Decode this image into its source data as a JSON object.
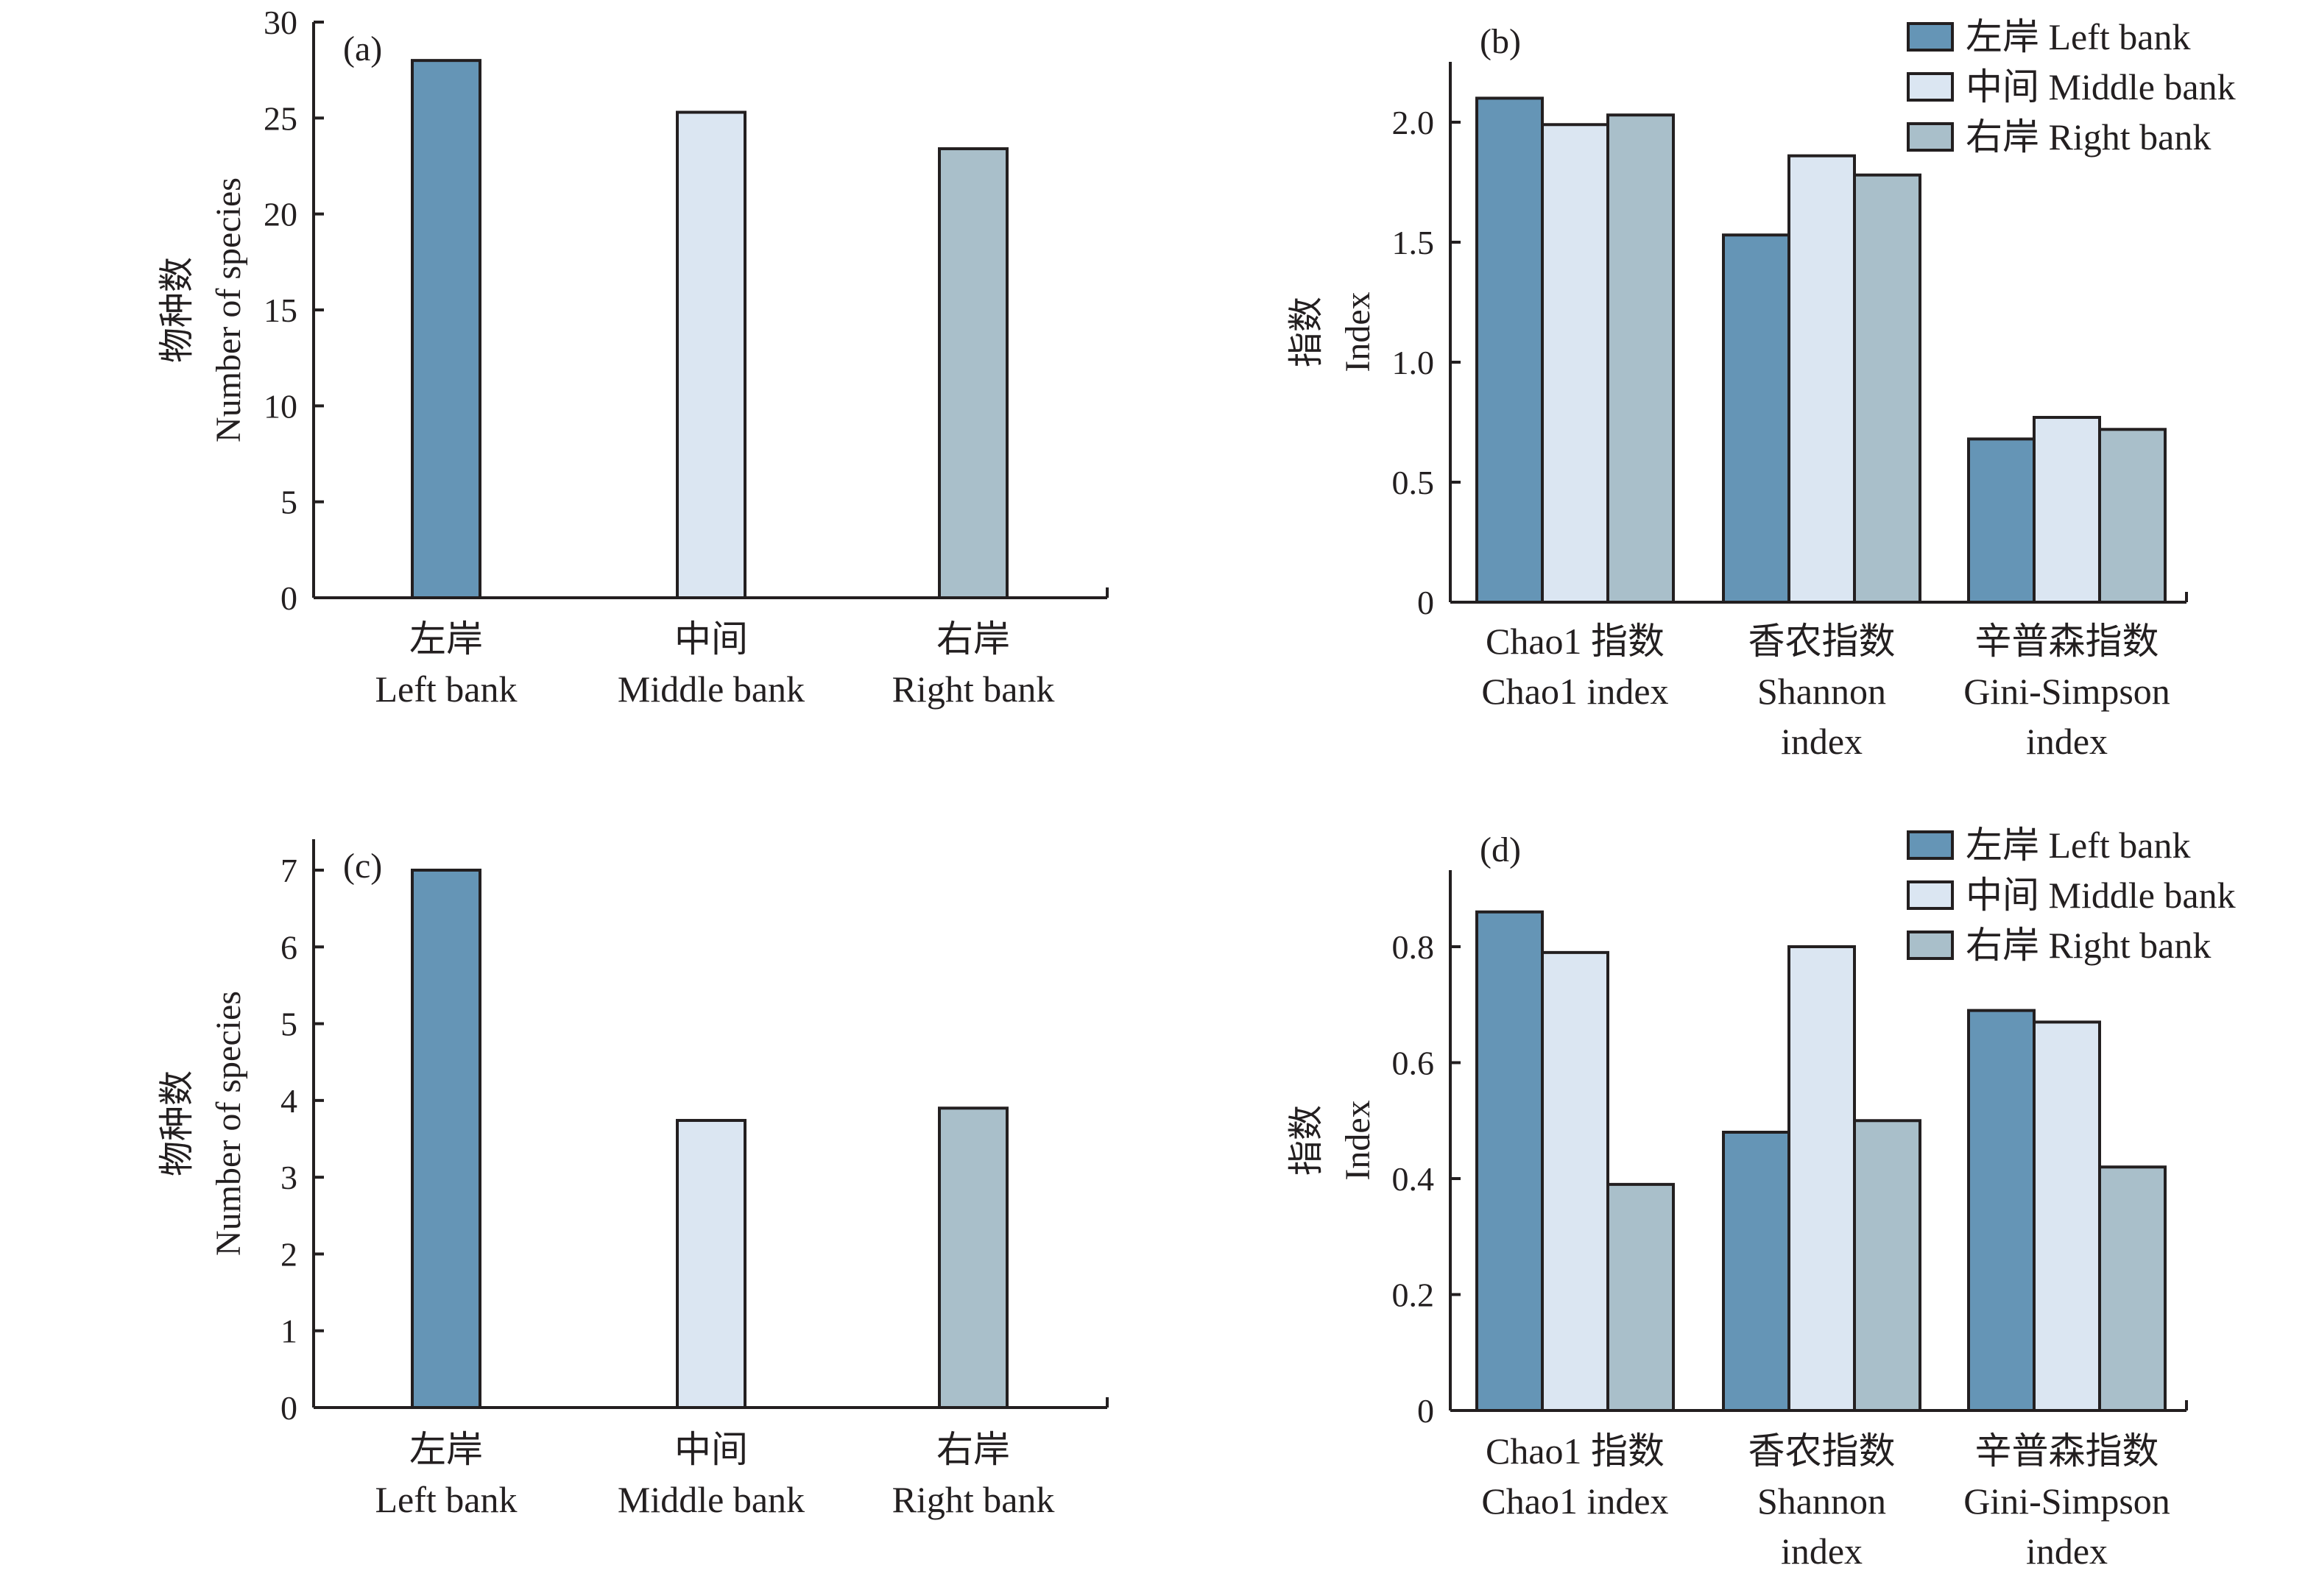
{
  "colors": {
    "left": "#6595b6",
    "middle": "#dbe6f2",
    "right": "#a9bfca",
    "axis": "#231f20"
  },
  "chart_data": [
    {
      "id": "a",
      "type": "bar",
      "panel_label": "(a)",
      "title": "",
      "ylabel_zh": "物种数",
      "ylabel_en": "Number of species",
      "ylim": [
        0,
        30
      ],
      "yticks": [
        0,
        5,
        10,
        15,
        20,
        25,
        30
      ],
      "ytick_labels": [
        "0",
        "5",
        "10",
        "15",
        "20",
        "25",
        "30"
      ],
      "categories": [
        {
          "zh": "左岸",
          "en": [
            "Left bank"
          ]
        },
        {
          "zh": "中间",
          "en": [
            "Middle bank"
          ]
        },
        {
          "zh": "右岸",
          "en": [
            "Right bank"
          ]
        }
      ],
      "values": [
        28.0,
        25.3,
        23.4
      ],
      "bar_color_keys": [
        "left",
        "middle",
        "right"
      ],
      "legend": null
    },
    {
      "id": "b",
      "type": "bar",
      "panel_label": "(b)",
      "title": "",
      "ylabel_zh": "指数",
      "ylabel_en": "Index",
      "ylim": [
        0,
        2.25
      ],
      "yticks": [
        0,
        0.5,
        1.0,
        1.5,
        2.0
      ],
      "ytick_labels": [
        "0",
        "0.5",
        "1.0",
        "1.5",
        "2.0"
      ],
      "categories": [
        {
          "zh": "Chao1 指数",
          "en": [
            "Chao1 index"
          ]
        },
        {
          "zh": "香农指数",
          "en": [
            "Shannon",
            "index"
          ]
        },
        {
          "zh": "辛普森指数",
          "en": [
            "Gini-Simpson",
            "index"
          ]
        }
      ],
      "series": [
        {
          "name": "左岸 Left bank",
          "color_key": "left",
          "values": [
            2.1,
            1.53,
            0.68
          ]
        },
        {
          "name": "中间 Middle bank",
          "color_key": "middle",
          "values": [
            1.99,
            1.86,
            0.77
          ]
        },
        {
          "name": "右岸 Right bank",
          "color_key": "right",
          "values": [
            2.03,
            1.78,
            0.72
          ]
        }
      ],
      "legend": "top-right"
    },
    {
      "id": "c",
      "type": "bar",
      "panel_label": "(c)",
      "title": "",
      "ylabel_zh": "物种数",
      "ylabel_en": "Number of species",
      "ylim": [
        0,
        7.4
      ],
      "yticks": [
        0,
        1,
        2,
        3,
        4,
        5,
        6,
        7
      ],
      "ytick_labels": [
        "0",
        "1",
        "2",
        "3",
        "4",
        "5",
        "6",
        "7"
      ],
      "categories": [
        {
          "zh": "左岸",
          "en": [
            "Left bank"
          ]
        },
        {
          "zh": "中间",
          "en": [
            "Middle bank"
          ]
        },
        {
          "zh": "右岸",
          "en": [
            "Right bank"
          ]
        }
      ],
      "values": [
        7.0,
        3.74,
        3.9
      ],
      "bar_color_keys": [
        "left",
        "middle",
        "right"
      ],
      "legend": null
    },
    {
      "id": "d",
      "type": "bar",
      "panel_label": "(d)",
      "title": "",
      "ylabel_zh": "指数",
      "ylabel_en": "Index",
      "ylim": [
        0,
        0.93
      ],
      "yticks": [
        0,
        0.2,
        0.4,
        0.6,
        0.8
      ],
      "ytick_labels": [
        "0",
        "0.2",
        "0.4",
        "0.6",
        "0.8"
      ],
      "categories": [
        {
          "zh": "Chao1 指数",
          "en": [
            "Chao1 index"
          ]
        },
        {
          "zh": "香农指数",
          "en": [
            "Shannon",
            "index"
          ]
        },
        {
          "zh": "辛普森指数",
          "en": [
            "Gini-Simpson",
            "index"
          ]
        }
      ],
      "series": [
        {
          "name": "左岸 Left bank",
          "color_key": "left",
          "values": [
            0.86,
            0.48,
            0.69
          ]
        },
        {
          "name": "中间 Middle bank",
          "color_key": "middle",
          "values": [
            0.79,
            0.8,
            0.67
          ]
        },
        {
          "name": "右岸 Right bank",
          "color_key": "right",
          "values": [
            0.39,
            0.5,
            0.42
          ]
        }
      ],
      "legend": "top-right"
    }
  ]
}
